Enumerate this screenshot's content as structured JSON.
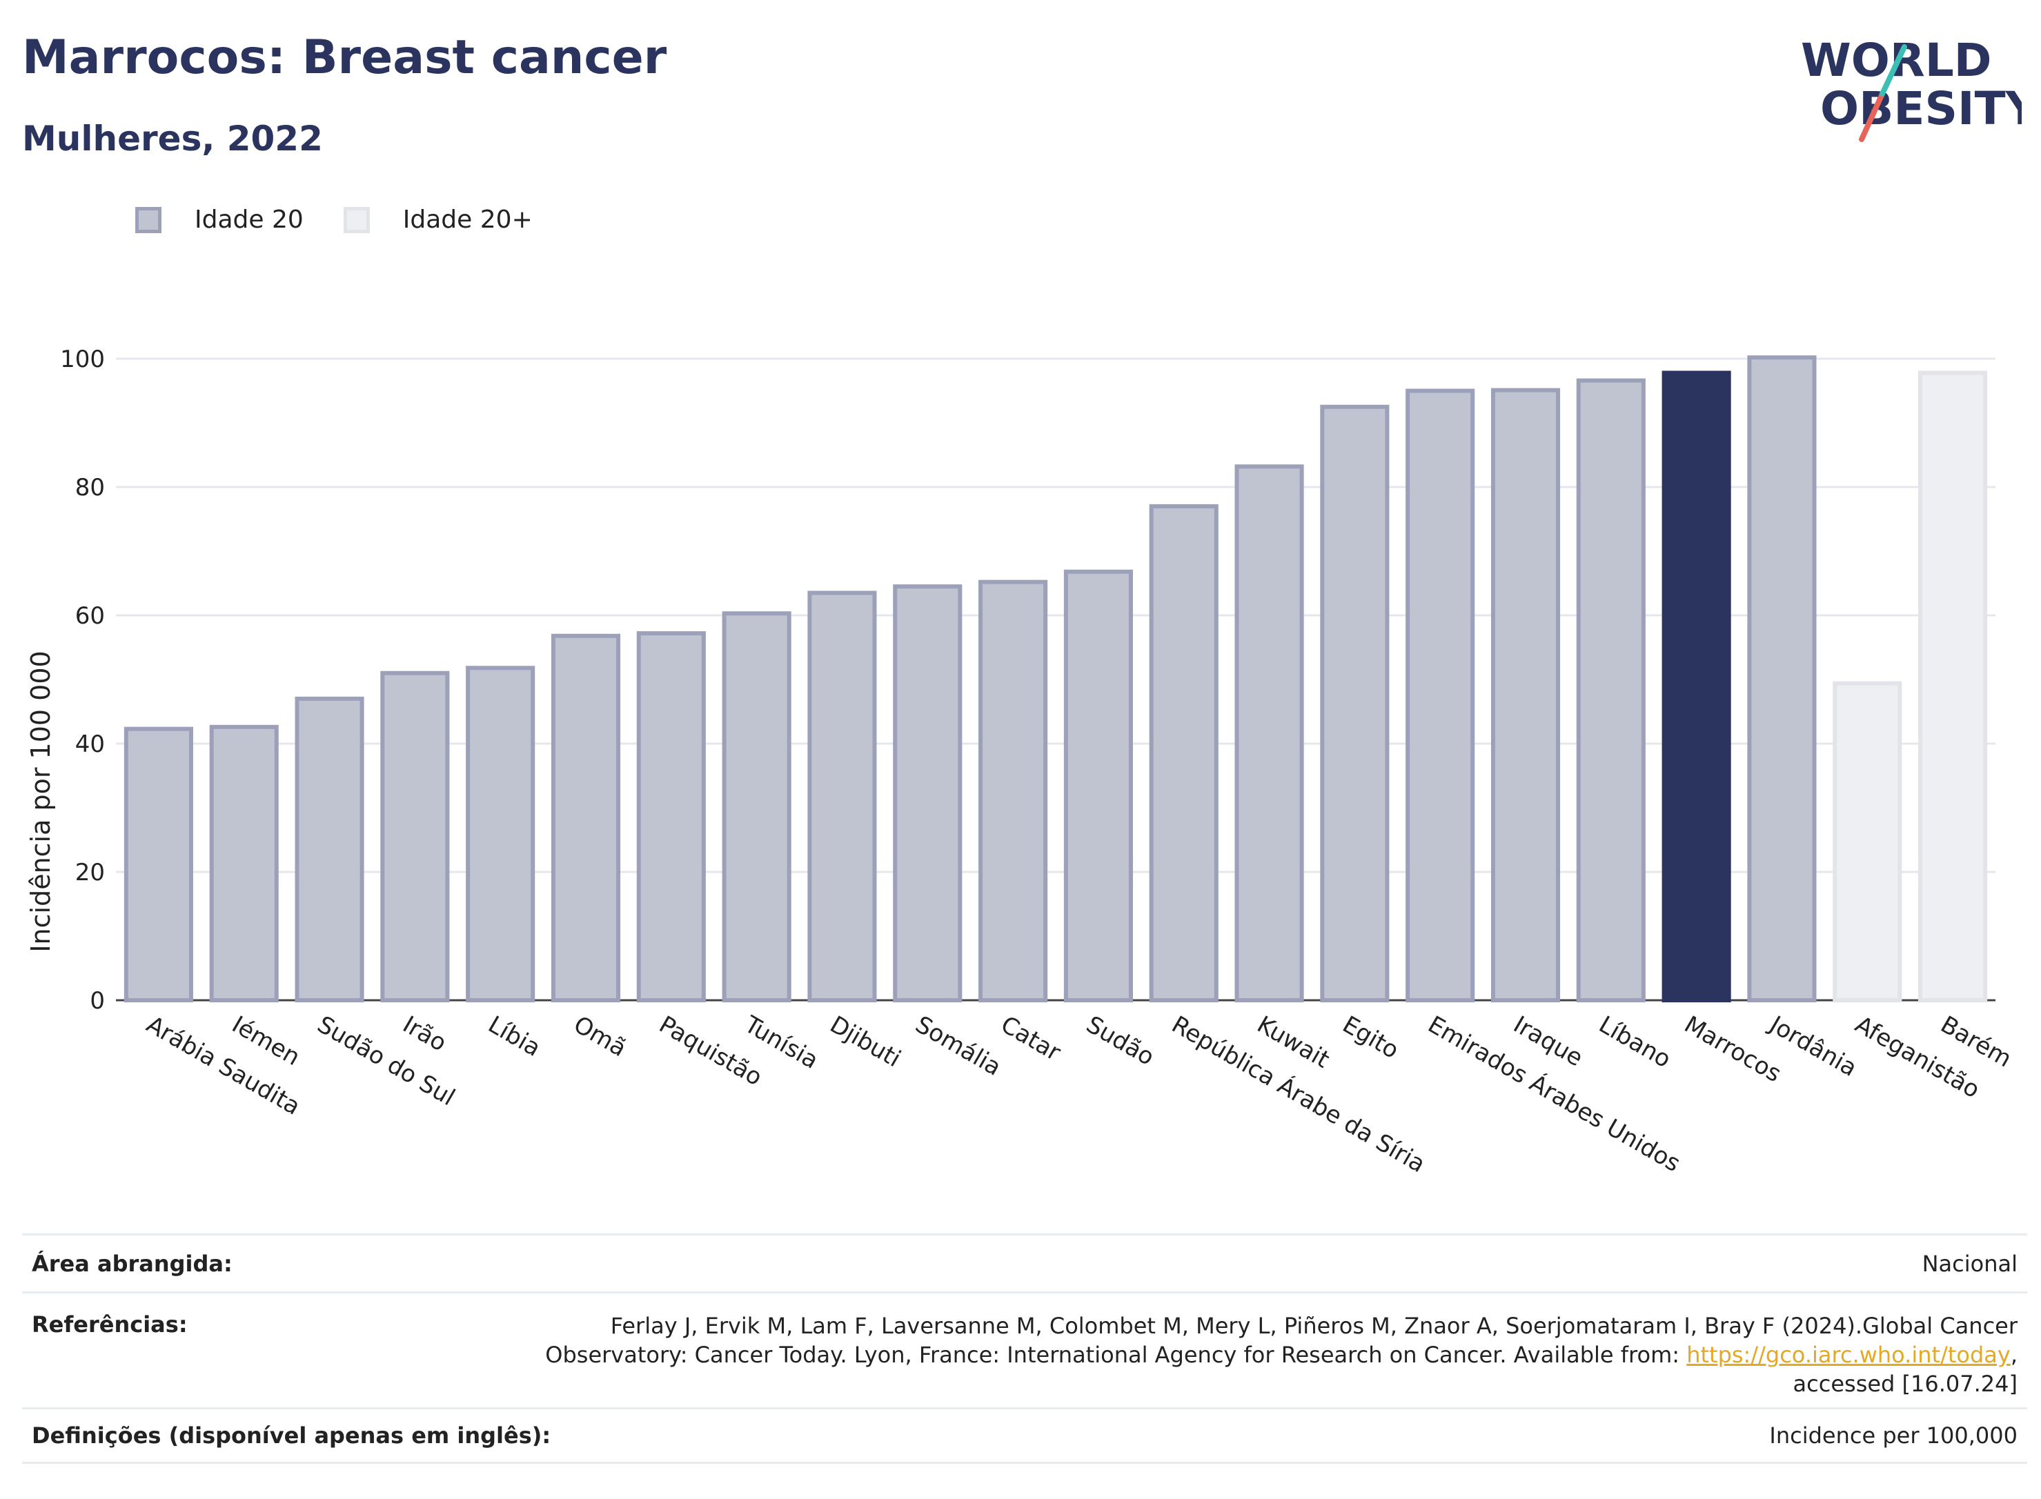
{
  "header": {
    "title": "Marrocos: Breast cancer",
    "subtitle": "Mulheres, 2022"
  },
  "logo": {
    "line1": "WORLD",
    "line2": "OBESITY"
  },
  "legend": {
    "items": [
      "Idade 20",
      "Idade 20+"
    ]
  },
  "colors": {
    "series_fill": "#c0c3d0",
    "series_stroke": "#9ca1b9",
    "highlight": "#2b345e",
    "series2_fill": "#eeeff3",
    "series2_stroke": "#e2e4ea",
    "logo_accent_teal": "#3bbfb5",
    "logo_accent_red": "#e8645a"
  },
  "chart_data": {
    "type": "bar",
    "ylabel": "Incidência por 100 000",
    "ylim": [
      0,
      100
    ],
    "yticks": [
      0,
      20,
      40,
      60,
      80,
      100
    ],
    "grid": true,
    "legend_position": "top-left",
    "categories": [
      "Arábia Saudita",
      "Iémen",
      "Sudão do Sul",
      "Irão",
      "Líbia",
      "Omã",
      "Paquistão",
      "Tunísia",
      "Djibuti",
      "Somália",
      "Catar",
      "Sudão",
      "República Árabe da Síria",
      "Kuwait",
      "Egito",
      "Emirados Árabes Unidos",
      "Iraque",
      "Líbano",
      "Marrocos",
      "Jordânia",
      "Afeganistão",
      "Barém"
    ],
    "values": [
      42.3,
      42.6,
      47.0,
      51.0,
      51.8,
      56.8,
      57.2,
      60.3,
      63.5,
      64.5,
      65.2,
      66.8,
      77.0,
      83.2,
      92.5,
      95.0,
      95.1,
      96.6,
      97.8,
      100.2,
      49.4,
      97.8
    ],
    "series_index": [
      0,
      0,
      0,
      0,
      0,
      0,
      0,
      0,
      0,
      0,
      0,
      0,
      0,
      0,
      0,
      0,
      0,
      0,
      0,
      0,
      1,
      1
    ],
    "highlight": "Marrocos"
  },
  "footer": {
    "area_label": "Área abrangida:",
    "area_value": "Nacional",
    "refs_label": "Referências:",
    "refs_text_1": "Ferlay J, Ervik M, Lam F, Laversanne M, Colombet M, Mery L, Piñeros M, Znaor A, Soerjomataram I, Bray F (2024).Global Cancer",
    "refs_text_2": "Observatory: Cancer Today. Lyon, France: International Agency for Research on Cancer. Available from: ",
    "refs_link": "https://gco.iarc.who.int/today",
    "refs_text_3": ",",
    "refs_text_4": "accessed [16.07.24]",
    "defs_label": "Definições (disponível apenas em inglês):",
    "defs_value": "Incidence per 100,000"
  }
}
